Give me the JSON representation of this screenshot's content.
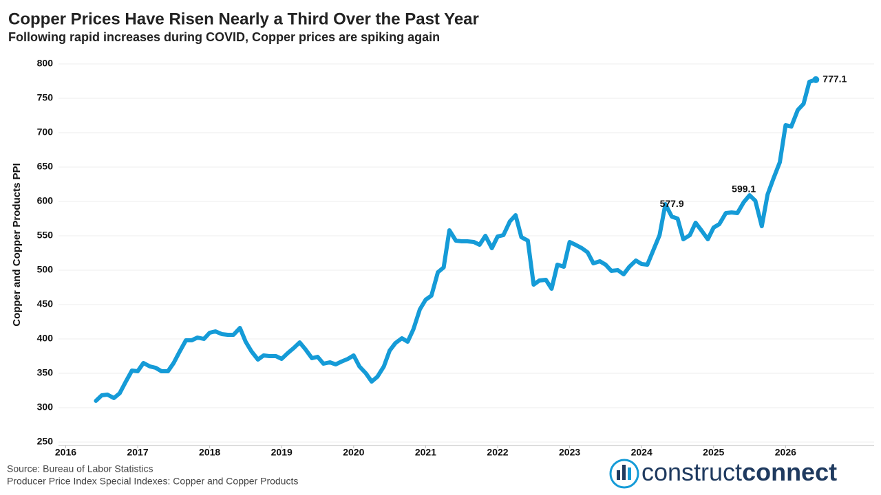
{
  "chart_data": {
    "type": "line",
    "title": "Copper Prices Have Risen Nearly a Third Over the Past Year",
    "subtitle": "Following rapid increases during COVID, Copper prices are spiking again",
    "y_label": "Copper and Copper Products PPI",
    "source": "Source: Bureau of Labor Statistics",
    "note": "Producer Price Index Special Indexes: Copper and Copper Products",
    "xlim": [
      2015.9,
      2027.23
    ],
    "xticks": [
      2016,
      2017,
      2018,
      2019,
      2020,
      2021,
      2022,
      2023,
      2024,
      2025,
      2026
    ],
    "ylim": [
      245,
      810
    ],
    "yticks": [
      250,
      300,
      350,
      400,
      450,
      500,
      550,
      600,
      650,
      700,
      750,
      800
    ],
    "grid": true,
    "series": [
      {
        "color": "#159bd7",
        "x": [
          2016.42,
          2016.5,
          2016.58,
          2016.67,
          2016.75,
          2016.83,
          2016.92,
          2017,
          2017.08,
          2017.17,
          2017.25,
          2017.33,
          2017.42,
          2017.5,
          2017.58,
          2017.67,
          2017.75,
          2017.83,
          2017.92,
          2018,
          2018.08,
          2018.17,
          2018.25,
          2018.33,
          2018.42,
          2018.5,
          2018.58,
          2018.67,
          2018.75,
          2018.83,
          2018.92,
          2019,
          2019.08,
          2019.17,
          2019.25,
          2019.33,
          2019.42,
          2019.5,
          2019.58,
          2019.67,
          2019.75,
          2019.83,
          2019.92,
          2020,
          2020.08,
          2020.17,
          2020.25,
          2020.33,
          2020.42,
          2020.5,
          2020.58,
          2020.67,
          2020.75,
          2020.83,
          2020.92,
          2021,
          2021.08,
          2021.17,
          2021.25,
          2021.33,
          2021.42,
          2021.5,
          2021.58,
          2021.67,
          2021.75,
          2021.83,
          2021.92,
          2022,
          2022.08,
          2022.17,
          2022.25,
          2022.33,
          2022.42,
          2022.5,
          2022.58,
          2022.67,
          2022.75,
          2022.83,
          2022.92,
          2023,
          2023.08,
          2023.17,
          2023.25,
          2023.33,
          2023.42,
          2023.5,
          2023.58,
          2023.67,
          2023.75,
          2023.83,
          2023.92,
          2024,
          2024.08,
          2024.17,
          2024.25,
          2024.33,
          2024.42,
          2024.5,
          2024.58,
          2024.67,
          2024.75,
          2024.83,
          2024.92,
          2025,
          2025.08,
          2025.17,
          2025.25,
          2025.33,
          2025.42,
          2025.5,
          2025.58,
          2025.67,
          2025.75,
          2025.83,
          2025.92,
          2026,
          2026.08,
          2026.17,
          2026.25,
          2026.33,
          2026.42
        ],
        "values": [
          310,
          318,
          319,
          314,
          321,
          337,
          354,
          353,
          365,
          360,
          358,
          353,
          353,
          365,
          381,
          398,
          398,
          402,
          400,
          409,
          411,
          407,
          406,
          406,
          416,
          396,
          382,
          370,
          376,
          375,
          375,
          371,
          379,
          387,
          395,
          385,
          372,
          374,
          364,
          366,
          363,
          367,
          371,
          376,
          360,
          350,
          338,
          345,
          360,
          383,
          394,
          401,
          396,
          414,
          443,
          457,
          463,
          497,
          504,
          558,
          543,
          542,
          542,
          541,
          537,
          550,
          532,
          549,
          551,
          571,
          580,
          548,
          543,
          479,
          485,
          486,
          473,
          508,
          505,
          541,
          537,
          532,
          526,
          510,
          513,
          508,
          499,
          500,
          494,
          505,
          514,
          509,
          508,
          531,
          551,
          596,
          577.9,
          575,
          545,
          551,
          569,
          558,
          545,
          562,
          567,
          583,
          584,
          583,
          599.1,
          609,
          601,
          564,
          610,
          633,
          657,
          711,
          709,
          733,
          742,
          774,
          777.1
        ],
        "value_labels": [
          null,
          null,
          null,
          null,
          null,
          null,
          null,
          null,
          null,
          null,
          null,
          null,
          null,
          null,
          null,
          null,
          null,
          null,
          null,
          null,
          null,
          null,
          null,
          null,
          null,
          null,
          null,
          null,
          null,
          null,
          null,
          null,
          null,
          null,
          null,
          null,
          null,
          null,
          null,
          null,
          null,
          null,
          null,
          null,
          null,
          null,
          null,
          null,
          null,
          null,
          null,
          null,
          null,
          null,
          null,
          null,
          null,
          null,
          null,
          null,
          null,
          null,
          null,
          null,
          null,
          null,
          null,
          null,
          null,
          null,
          null,
          null,
          null,
          null,
          null,
          null,
          null,
          null,
          null,
          null,
          null,
          null,
          null,
          null,
          null,
          null,
          null,
          null,
          null,
          null,
          null,
          null,
          null,
          null,
          null,
          null,
          "577.9",
          null,
          null,
          null,
          null,
          null,
          null,
          null,
          null,
          null,
          null,
          null,
          "599.1",
          null,
          null,
          null,
          null,
          null,
          null,
          null,
          null,
          null,
          null,
          null,
          "777.1"
        ]
      }
    ]
  },
  "logo": {
    "light": "construct",
    "bold": "connect"
  }
}
